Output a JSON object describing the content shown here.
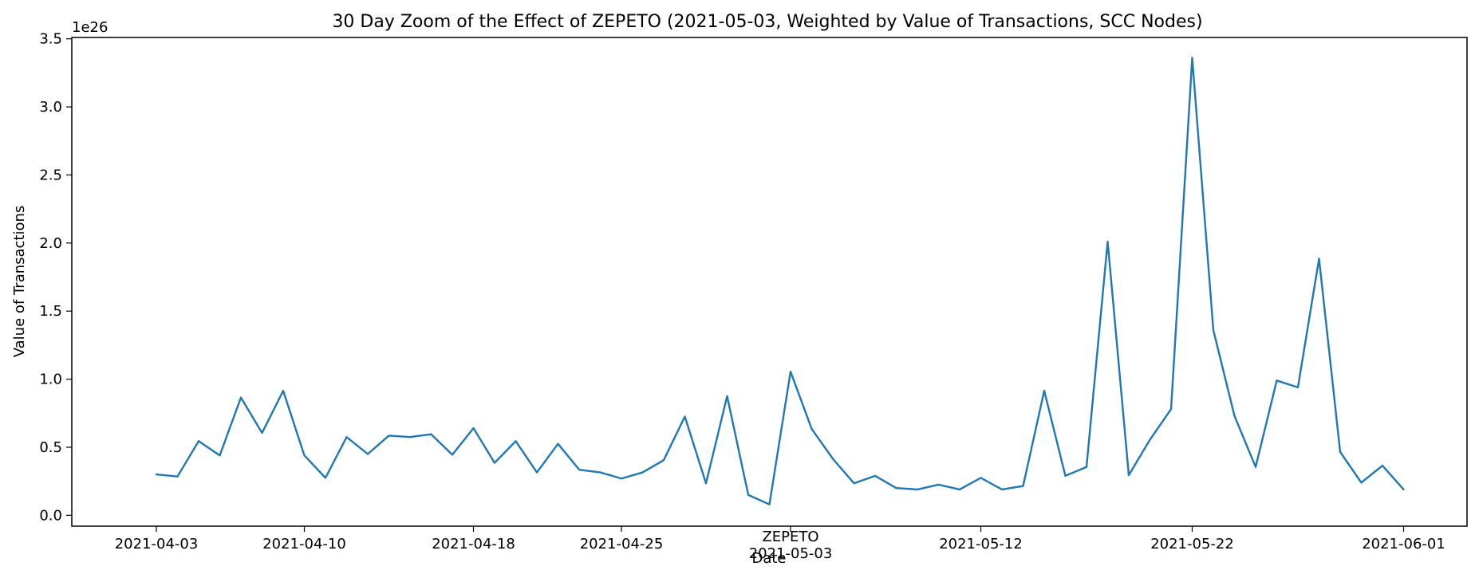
{
  "chart_data": {
    "type": "line",
    "title": "30 Day Zoom of the Effect of ZEPETO (2021-05-03, Weighted by Value of Transactions, SCC Nodes)",
    "xlabel": "Date",
    "ylabel": "Value of Transactions",
    "y_offset_label": "1e26",
    "y_scale": 1e+26,
    "ylim": [
      -0.08,
      3.51
    ],
    "xlim": [
      "2021-03-30",
      "2021-06-04"
    ],
    "grid": false,
    "line_color": "#1f77b4",
    "yticks": [
      0.0,
      0.5,
      1.0,
      1.5,
      2.0,
      2.5,
      3.0,
      3.5
    ],
    "ytick_labels": [
      "0.0",
      "0.5",
      "1.0",
      "1.5",
      "2.0",
      "2.5",
      "3.0",
      "3.5"
    ],
    "xticks": [
      {
        "date": "2021-04-03",
        "label": "2021-04-03"
      },
      {
        "date": "2021-04-10",
        "label": "2021-04-10"
      },
      {
        "date": "2021-04-18",
        "label": "2021-04-18"
      },
      {
        "date": "2021-04-25",
        "label": "2021-04-25"
      },
      {
        "date": "2021-05-03",
        "label": "2021-05-03"
      },
      {
        "date": "2021-05-12",
        "label": "2021-05-12"
      },
      {
        "date": "2021-05-22",
        "label": "2021-05-22"
      },
      {
        "date": "2021-06-01",
        "label": "2021-06-01"
      }
    ],
    "event": {
      "date": "2021-05-03",
      "label": "ZEPETO"
    },
    "series": [
      {
        "x": [
          "2021-04-03",
          "2021-04-04",
          "2021-04-05",
          "2021-04-06",
          "2021-04-07",
          "2021-04-08",
          "2021-04-09",
          "2021-04-10",
          "2021-04-11",
          "2021-04-12",
          "2021-04-13",
          "2021-04-14",
          "2021-04-15",
          "2021-04-16",
          "2021-04-17",
          "2021-04-18",
          "2021-04-19",
          "2021-04-20",
          "2021-04-21",
          "2021-04-22",
          "2021-04-23",
          "2021-04-24",
          "2021-04-25",
          "2021-04-26",
          "2021-04-27",
          "2021-04-28",
          "2021-04-29",
          "2021-04-30",
          "2021-05-01",
          "2021-05-02",
          "2021-05-03",
          "2021-05-04",
          "2021-05-05",
          "2021-05-06",
          "2021-05-07",
          "2021-05-08",
          "2021-05-09",
          "2021-05-10",
          "2021-05-11",
          "2021-05-12",
          "2021-05-13",
          "2021-05-14",
          "2021-05-15",
          "2021-05-16",
          "2021-05-17",
          "2021-05-18",
          "2021-05-19",
          "2021-05-20",
          "2021-05-21",
          "2021-05-22",
          "2021-05-23",
          "2021-05-24",
          "2021-05-25",
          "2021-05-26",
          "2021-05-27",
          "2021-05-28",
          "2021-05-29",
          "2021-05-30",
          "2021-05-31",
          "2021-06-01"
        ],
        "values": [
          0.3,
          0.285,
          0.545,
          0.44,
          0.865,
          0.605,
          0.915,
          0.44,
          0.275,
          0.575,
          0.45,
          0.585,
          0.575,
          0.595,
          0.445,
          0.64,
          0.385,
          0.545,
          0.315,
          0.525,
          0.335,
          0.315,
          0.27,
          0.315,
          0.405,
          0.725,
          0.235,
          0.875,
          0.15,
          0.08,
          1.055,
          0.635,
          0.415,
          0.235,
          0.29,
          0.2,
          0.19,
          0.225,
          0.19,
          0.275,
          0.19,
          0.215,
          0.915,
          0.29,
          0.355,
          2.01,
          0.295,
          0.555,
          0.78,
          3.36,
          1.36,
          0.73,
          0.355,
          0.99,
          0.94,
          1.885,
          0.465,
          0.24,
          0.365,
          0.19
        ]
      }
    ]
  }
}
